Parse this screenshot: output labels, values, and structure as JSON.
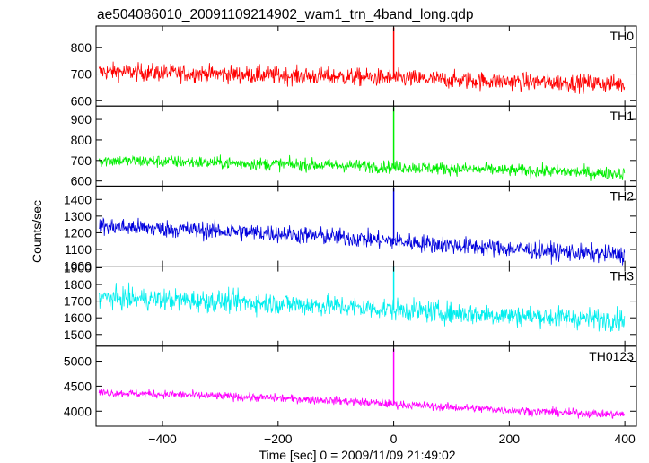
{
  "chart_data": {
    "type": "line",
    "title": "ae504086010_20091109214902_wam1_trn_4band_long.qdp",
    "xlabel": "Time [sec] 0 = 2009/11/09 21:49:02",
    "ylabel": "Counts/sec",
    "xlim": [
      -515,
      420
    ],
    "x_ticks": [
      -400,
      -200,
      0,
      200,
      400
    ],
    "x_range": [
      -510,
      400
    ],
    "grid": false,
    "panels": [
      {
        "name": "TH0",
        "color": "#ff0000",
        "ylim": [
          580,
          880
        ],
        "y_ticks": [
          600,
          700,
          800
        ],
        "trend": [
          {
            "x": -510,
            "y": 710
          },
          {
            "x": -400,
            "y": 705
          },
          {
            "x": -300,
            "y": 700
          },
          {
            "x": -200,
            "y": 695
          },
          {
            "x": -100,
            "y": 690
          },
          {
            "x": 0,
            "y": 685
          },
          {
            "x": 100,
            "y": 678
          },
          {
            "x": 200,
            "y": 672
          },
          {
            "x": 300,
            "y": 668
          },
          {
            "x": 400,
            "y": 662
          }
        ],
        "noise": 28,
        "spike": {
          "x": 0,
          "y": 875
        }
      },
      {
        "name": "TH1",
        "color": "#00ee00",
        "ylim": [
          575,
          965
        ],
        "y_ticks": [
          600,
          700,
          800,
          900
        ],
        "trend": [
          {
            "x": -510,
            "y": 700
          },
          {
            "x": -400,
            "y": 695
          },
          {
            "x": -300,
            "y": 688
          },
          {
            "x": -200,
            "y": 682
          },
          {
            "x": -100,
            "y": 676
          },
          {
            "x": 0,
            "y": 668
          },
          {
            "x": 100,
            "y": 660
          },
          {
            "x": 200,
            "y": 652
          },
          {
            "x": 300,
            "y": 645
          },
          {
            "x": 400,
            "y": 635
          }
        ],
        "noise": 26,
        "spike": {
          "x": 0,
          "y": 960
        }
      },
      {
        "name": "TH2",
        "color": "#0000dd",
        "ylim": [
          1000,
          1480
        ],
        "y_ticks": [
          1000,
          1100,
          1200,
          1300,
          1400
        ],
        "trend": [
          {
            "x": -510,
            "y": 1240
          },
          {
            "x": -400,
            "y": 1225
          },
          {
            "x": -300,
            "y": 1210
          },
          {
            "x": -200,
            "y": 1195
          },
          {
            "x": -100,
            "y": 1175
          },
          {
            "x": 0,
            "y": 1150
          },
          {
            "x": 100,
            "y": 1125
          },
          {
            "x": 200,
            "y": 1105
          },
          {
            "x": 300,
            "y": 1085
          },
          {
            "x": 400,
            "y": 1065
          }
        ],
        "noise": 45,
        "spike": {
          "x": 0,
          "y": 1470
        }
      },
      {
        "name": "TH3",
        "color": "#00eeee",
        "ylim": [
          1430,
          1910
        ],
        "y_ticks": [
          1500,
          1600,
          1700,
          1800,
          1900
        ],
        "trend": [
          {
            "x": -510,
            "y": 1720
          },
          {
            "x": -400,
            "y": 1710
          },
          {
            "x": -300,
            "y": 1700
          },
          {
            "x": -200,
            "y": 1685
          },
          {
            "x": -100,
            "y": 1670
          },
          {
            "x": 0,
            "y": 1650
          },
          {
            "x": 100,
            "y": 1630
          },
          {
            "x": 200,
            "y": 1615
          },
          {
            "x": 300,
            "y": 1600
          },
          {
            "x": 400,
            "y": 1590
          }
        ],
        "noise": 55,
        "spike": {
          "x": 0,
          "y": 1905
        }
      },
      {
        "name": "TH0123",
        "color": "#ff00ff",
        "ylim": [
          3700,
          5300
        ],
        "y_ticks": [
          4000,
          4500,
          5000
        ],
        "trend": [
          {
            "x": -510,
            "y": 4370
          },
          {
            "x": -400,
            "y": 4340
          },
          {
            "x": -300,
            "y": 4300
          },
          {
            "x": -200,
            "y": 4260
          },
          {
            "x": -100,
            "y": 4210
          },
          {
            "x": 0,
            "y": 4140
          },
          {
            "x": 100,
            "y": 4080
          },
          {
            "x": 200,
            "y": 4020
          },
          {
            "x": 300,
            "y": 3970
          },
          {
            "x": 400,
            "y": 3930
          }
        ],
        "noise": 70,
        "spike": {
          "x": 0,
          "y": 5250
        }
      }
    ]
  }
}
